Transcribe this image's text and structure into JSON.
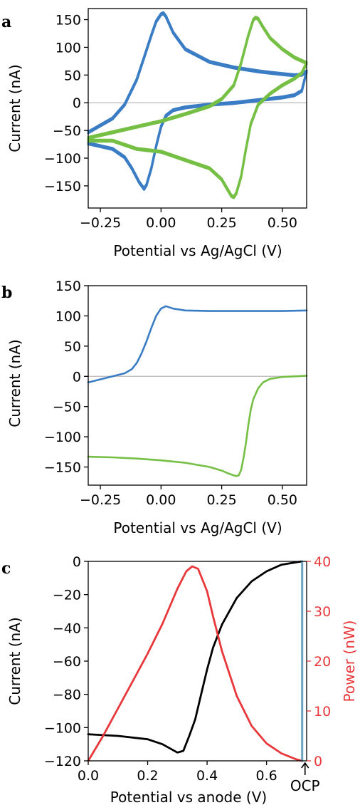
{
  "colors": {
    "blue": "#3b7dc4",
    "green": "#74bf44",
    "black": "#000000",
    "red": "#e8383b",
    "ocp_line": "#6aa2bf",
    "zero_line": "#b8b8b8"
  },
  "chart_data": [
    {
      "panel": "a",
      "type": "line",
      "title": "",
      "xlabel": "Potential vs Ag/AgCl (V)",
      "ylabel": "Current (nA)",
      "xlim": [
        -0.3,
        0.6
      ],
      "ylim": [
        -190,
        170
      ],
      "xticks": [
        -0.25,
        0.0,
        0.25,
        0.5
      ],
      "xtick_labels": [
        "−0.25",
        "0.00",
        "0.25",
        "0.50"
      ],
      "yticks": [
        -150,
        -100,
        -50,
        0,
        50,
        100,
        150
      ],
      "ytick_labels": [
        "−150",
        "−100",
        "−50",
        "0",
        "50",
        "100",
        "150"
      ],
      "zero_line": true,
      "grid": false,
      "series": [
        {
          "color": "blue",
          "cycles": 2,
          "x": [
            -0.3,
            -0.2,
            -0.15,
            -0.1,
            -0.07,
            -0.04,
            -0.02,
            0.0,
            0.01,
            0.02,
            0.05,
            0.1,
            0.2,
            0.3,
            0.4,
            0.5,
            0.55,
            0.58,
            0.6,
            0.58,
            0.55,
            0.5,
            0.4,
            0.3,
            0.2,
            0.1,
            0.05,
            0.02,
            0.0,
            -0.02,
            -0.04,
            -0.06,
            -0.07,
            -0.09,
            -0.12,
            -0.15,
            -0.2,
            -0.25,
            -0.3
          ],
          "y": [
            -55,
            -30,
            -5,
            40,
            80,
            120,
            145,
            158,
            160,
            154,
            125,
            95,
            72,
            62,
            55,
            50,
            48,
            49,
            55,
            20,
            12,
            8,
            3,
            -2,
            -5,
            -10,
            -15,
            -25,
            -45,
            -80,
            -120,
            -150,
            -157,
            -145,
            -120,
            -100,
            -85,
            -80,
            -75
          ]
        },
        {
          "color": "green",
          "cycles": 2,
          "x": [
            -0.3,
            -0.2,
            -0.1,
            0.0,
            0.1,
            0.2,
            0.25,
            0.3,
            0.33,
            0.36,
            0.38,
            0.39,
            0.4,
            0.42,
            0.45,
            0.5,
            0.55,
            0.6,
            0.58,
            0.55,
            0.5,
            0.45,
            0.4,
            0.37,
            0.35,
            0.33,
            0.31,
            0.3,
            0.29,
            0.27,
            0.25,
            0.2,
            0.1,
            0.0,
            -0.1,
            -0.2,
            -0.3
          ],
          "y": [
            -65,
            -55,
            -45,
            -35,
            -22,
            -8,
            5,
            30,
            70,
            120,
            148,
            152,
            150,
            135,
            115,
            95,
            80,
            70,
            52,
            42,
            30,
            15,
            -5,
            -40,
            -85,
            -135,
            -165,
            -172,
            -170,
            -155,
            -140,
            -120,
            -105,
            -90,
            -85,
            -70,
            -70
          ]
        }
      ]
    },
    {
      "panel": "b",
      "type": "line",
      "title": "",
      "xlabel": "Potential vs Ag/AgCl (V)",
      "ylabel": "Current (nA)",
      "xlim": [
        -0.3,
        0.6
      ],
      "ylim": [
        -180,
        150
      ],
      "xticks": [
        -0.25,
        0.0,
        0.25,
        0.5
      ],
      "xtick_labels": [
        "−0.25",
        "0.00",
        "0.25",
        "0.50"
      ],
      "yticks": [
        -150,
        -100,
        -50,
        0,
        50,
        100,
        150
      ],
      "ytick_labels": [
        "−150",
        "−100",
        "−50",
        "0",
        "50",
        "100",
        "150"
      ],
      "zero_line": true,
      "grid": false,
      "series": [
        {
          "color": "blue",
          "x": [
            -0.3,
            -0.25,
            -0.2,
            -0.15,
            -0.12,
            -0.1,
            -0.08,
            -0.06,
            -0.04,
            -0.02,
            0.0,
            0.02,
            0.05,
            0.1,
            0.2,
            0.3,
            0.4,
            0.5,
            0.6
          ],
          "y": [
            -10,
            -5,
            0,
            5,
            12,
            22,
            38,
            58,
            80,
            100,
            112,
            116,
            112,
            109,
            108,
            108,
            108,
            108,
            109
          ],
          "cycles": 1
        },
        {
          "color": "green",
          "x": [
            -0.3,
            -0.2,
            -0.1,
            0.0,
            0.1,
            0.2,
            0.25,
            0.28,
            0.3,
            0.31,
            0.32,
            0.33,
            0.34,
            0.35,
            0.36,
            0.37,
            0.38,
            0.4,
            0.42,
            0.45,
            0.5,
            0.55,
            0.6
          ],
          "y": [
            -133,
            -134,
            -136,
            -139,
            -143,
            -150,
            -156,
            -161,
            -164,
            -165,
            -164,
            -155,
            -135,
            -110,
            -80,
            -55,
            -38,
            -20,
            -10,
            -4,
            -1,
            0,
            1
          ],
          "cycles": 1
        }
      ]
    },
    {
      "panel": "c",
      "type": "line",
      "title": "",
      "xlabel": "Potential vs anode (V)",
      "ylabel": "Current (nA)",
      "y2label": "Power (nW)",
      "xlim": [
        0.0,
        0.735
      ],
      "ylim": [
        -120,
        0
      ],
      "y2lim": [
        0,
        40
      ],
      "xticks": [
        0.0,
        0.2,
        0.4,
        0.6
      ],
      "xtick_labels": [
        "0.0",
        "0.2",
        "0.4",
        "0.6"
      ],
      "yticks": [
        -120,
        -100,
        -80,
        -60,
        -40,
        -20,
        0
      ],
      "ytick_labels": [
        "−120",
        "−100",
        "−80",
        "−60",
        "−40",
        "−20",
        "0"
      ],
      "y2ticks": [
        0,
        10,
        20,
        30,
        40
      ],
      "y2tick_labels": [
        "0",
        "10",
        "20",
        "30",
        "40"
      ],
      "annotation": "OCP",
      "ocp_x": 0.72,
      "grid": false,
      "series": [
        {
          "color": "black",
          "axis": "left",
          "x": [
            0.0,
            0.1,
            0.2,
            0.25,
            0.28,
            0.3,
            0.32,
            0.34,
            0.36,
            0.38,
            0.4,
            0.42,
            0.45,
            0.5,
            0.55,
            0.6,
            0.65,
            0.7,
            0.72
          ],
          "y": [
            -104,
            -105,
            -107,
            -110,
            -113,
            -115,
            -114,
            -105,
            -95,
            -80,
            -65,
            -52,
            -38,
            -22,
            -12,
            -6,
            -2,
            -0.5,
            0
          ]
        },
        {
          "color": "red",
          "axis": "right",
          "x": [
            0.0,
            0.05,
            0.1,
            0.15,
            0.2,
            0.25,
            0.3,
            0.33,
            0.35,
            0.37,
            0.4,
            0.42,
            0.45,
            0.5,
            0.55,
            0.6,
            0.65,
            0.7,
            0.72
          ],
          "y": [
            0,
            5,
            10.5,
            16,
            21.5,
            27.5,
            34.5,
            38,
            39,
            38.5,
            34,
            29,
            22,
            13,
            7,
            3.5,
            1.5,
            0.3,
            0
          ]
        },
        {
          "color": "ocp_line",
          "axis": "left",
          "x": [
            0.72,
            0.72
          ],
          "y": [
            -120,
            0
          ]
        }
      ]
    }
  ]
}
